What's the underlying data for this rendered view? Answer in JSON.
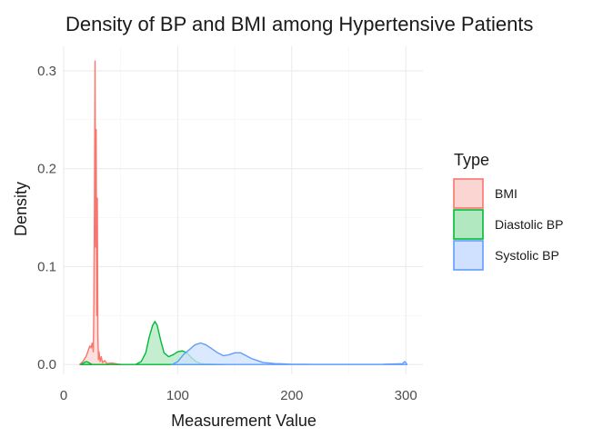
{
  "chart_data": {
    "type": "area",
    "title": "Density of BP and BMI among Hypertensive Patients",
    "xlabel": "Measurement Value",
    "ylabel": "Density",
    "xlim": [
      0,
      315
    ],
    "ylim": [
      -0.01,
      0.325
    ],
    "x_ticks": [
      0,
      100,
      200,
      300
    ],
    "x_tick_labels": [
      "0",
      "100",
      "200",
      "300"
    ],
    "y_ticks": [
      0.0,
      0.1,
      0.2,
      0.3
    ],
    "y_tick_labels": [
      "0.0",
      "0.1",
      "0.2",
      "0.3"
    ],
    "grid": true,
    "legend": {
      "title": "Type",
      "position": "right"
    },
    "series": [
      {
        "name": "BMI",
        "stroke": "#F8766D",
        "fill": "#FBD5D2",
        "points": [
          [
            14,
            0
          ],
          [
            16,
            0.002
          ],
          [
            18,
            0.005
          ],
          [
            20,
            0.009
          ],
          [
            22,
            0.016
          ],
          [
            23,
            0.019
          ],
          [
            24,
            0.017
          ],
          [
            25,
            0.022
          ],
          [
            26,
            0.013
          ],
          [
            26.5,
            0.06
          ],
          [
            27,
            0.16
          ],
          [
            27.5,
            0.31
          ],
          [
            28,
            0.12
          ],
          [
            28.5,
            0.24
          ],
          [
            29,
            0.05
          ],
          [
            29.5,
            0.17
          ],
          [
            30,
            0.03
          ],
          [
            30.5,
            0.005
          ],
          [
            31,
            0.013
          ],
          [
            32,
            0.003
          ],
          [
            33,
            0.008
          ],
          [
            34,
            0.002
          ],
          [
            36,
            0.004
          ],
          [
            38,
            0.001
          ],
          [
            42,
            0.0015
          ],
          [
            50,
            0
          ]
        ]
      },
      {
        "name": "Diastolic BP",
        "stroke": "#00BA38",
        "fill": "#B2E8C0",
        "points": [
          [
            15,
            0
          ],
          [
            18,
            0.002
          ],
          [
            20,
            0.003
          ],
          [
            22,
            0.002
          ],
          [
            25,
            0
          ],
          [
            63,
            0
          ],
          [
            68,
            0.003
          ],
          [
            72,
            0.012
          ],
          [
            75,
            0.028
          ],
          [
            78,
            0.04
          ],
          [
            80,
            0.044
          ],
          [
            82,
            0.04
          ],
          [
            85,
            0.025
          ],
          [
            88,
            0.012
          ],
          [
            92,
            0.008
          ],
          [
            96,
            0.01
          ],
          [
            100,
            0.013
          ],
          [
            104,
            0.014
          ],
          [
            108,
            0.012
          ],
          [
            112,
            0.007
          ],
          [
            116,
            0.003
          ],
          [
            120,
            0.001
          ],
          [
            125,
            0.0005
          ],
          [
            140,
            0
          ]
        ]
      },
      {
        "name": "Systolic BP",
        "stroke": "#619CFF",
        "fill": "#CFE1FF",
        "points": [
          [
            95,
            0
          ],
          [
            100,
            0.003
          ],
          [
            105,
            0.01
          ],
          [
            110,
            0.015
          ],
          [
            115,
            0.02
          ],
          [
            120,
            0.022
          ],
          [
            125,
            0.02
          ],
          [
            130,
            0.016
          ],
          [
            135,
            0.012
          ],
          [
            140,
            0.009
          ],
          [
            145,
            0.01
          ],
          [
            150,
            0.012
          ],
          [
            155,
            0.012
          ],
          [
            160,
            0.009
          ],
          [
            165,
            0.006
          ],
          [
            170,
            0.004
          ],
          [
            175,
            0.002
          ],
          [
            180,
            0.0015
          ],
          [
            185,
            0.001
          ],
          [
            190,
            0.0008
          ],
          [
            195,
            0.0005
          ],
          [
            200,
            0.0003
          ],
          [
            210,
            0.0002
          ],
          [
            220,
            0.0001
          ],
          [
            240,
            0.0001
          ],
          [
            280,
            0.0002
          ],
          [
            297,
            0.0008
          ],
          [
            299,
            0.003
          ],
          [
            300,
            0.002
          ],
          [
            301,
            0
          ]
        ]
      }
    ]
  }
}
